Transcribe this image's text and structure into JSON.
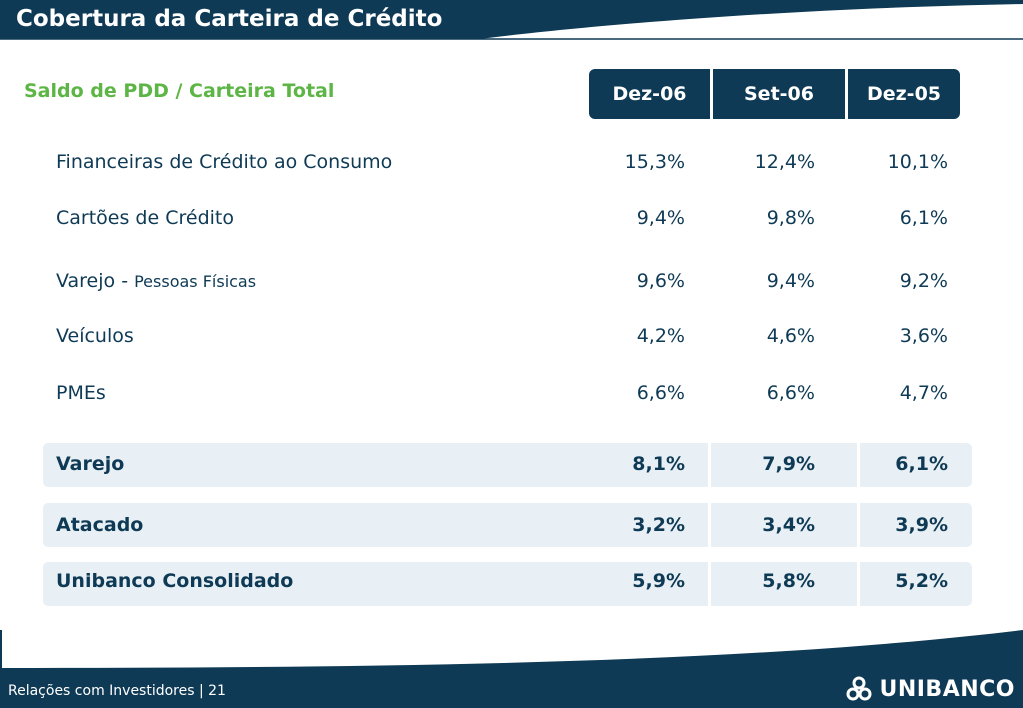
{
  "header": {
    "title": "Cobertura da Carteira de Crédito"
  },
  "section": {
    "title": "Saldo de PDD / Carteira Total"
  },
  "columns": [
    "Dez-06",
    "Set-06",
    "Dez-05"
  ],
  "rows": [
    {
      "label": "Financeiras de Crédito ao Consumo",
      "values": [
        "15,3%",
        "12,4%",
        "10,1%"
      ]
    },
    {
      "label": "Cartões de Crédito",
      "values": [
        "9,4%",
        "9,8%",
        "6,1%"
      ]
    },
    {
      "label": "Varejo - ",
      "label_small": "Pessoas Físicas",
      "values": [
        "9,6%",
        "9,4%",
        "9,2%"
      ]
    },
    {
      "label": "Veículos",
      "values": [
        "4,2%",
        "4,6%",
        "3,6%"
      ]
    },
    {
      "label": "PMEs",
      "values": [
        "6,6%",
        "6,6%",
        "4,7%"
      ]
    }
  ],
  "summary": [
    {
      "label": "Varejo",
      "values": [
        "8,1%",
        "7,9%",
        "6,1%"
      ]
    },
    {
      "label": "Atacado",
      "values": [
        "3,2%",
        "3,4%",
        "3,9%"
      ]
    },
    {
      "label": "Unibanco Consolidado",
      "values": [
        "5,9%",
        "5,8%",
        "5,2%"
      ]
    }
  ],
  "footer": {
    "text": "Relações com Investidores | 21",
    "logo_text": "UNIBANCO"
  },
  "colors": {
    "navy": "#0e3a55",
    "green": "#5cb545",
    "summary_bg": "#e9f0f5"
  }
}
